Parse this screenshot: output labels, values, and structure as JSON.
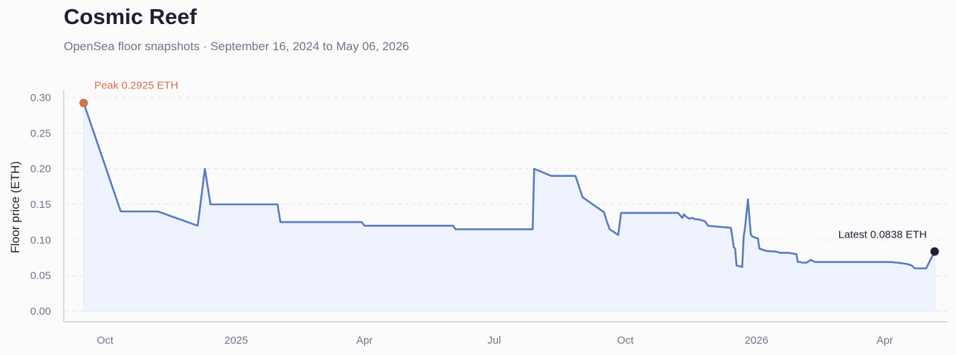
{
  "chart_data": {
    "type": "area",
    "title": "Cosmic Reef",
    "subtitle": "OpenSea floor snapshots · September 16, 2024 to May 06, 2026",
    "xlabel": "",
    "ylabel": "Floor price (ETH)",
    "ylim": [
      -0.015,
      0.31
    ],
    "yticks": [
      0.0,
      0.05,
      0.1,
      0.15,
      0.2,
      0.25,
      0.3
    ],
    "ytick_labels": [
      "0.00",
      "0.05",
      "0.10",
      "0.15",
      "0.20",
      "0.25",
      "0.30"
    ],
    "xlim": [
      "2024-09-02",
      "2026-05-15"
    ],
    "xticks": [
      {
        "date": "2024-10-01",
        "label": "Oct"
      },
      {
        "date": "2025-01-01",
        "label": "2025"
      },
      {
        "date": "2025-04-01",
        "label": "Apr"
      },
      {
        "date": "2025-07-01",
        "label": "Jul"
      },
      {
        "date": "2025-10-01",
        "label": "Oct"
      },
      {
        "date": "2026-01-01",
        "label": "2026"
      },
      {
        "date": "2026-04-01",
        "label": "Apr"
      }
    ],
    "grid": "horizontal dashed",
    "colors": {
      "line": "#5479c4",
      "fill": "#eef3fd",
      "peak": "#d0714b",
      "latest": "#1c2030",
      "grid": "#e3e5ea",
      "axis": "#d5d7e3"
    },
    "series": [
      {
        "x": [
          "2024-09-16",
          "2024-10-12",
          "2024-11-07",
          "2024-12-05",
          "2024-12-10",
          "2024-12-14",
          "2025-01-30",
          "2025-02-01",
          "2025-03-30",
          "2025-04-01",
          "2025-06-02",
          "2025-06-04",
          "2025-07-28",
          "2025-07-29",
          "2025-08-10",
          "2025-08-27",
          "2025-09-01",
          "2025-09-16",
          "2025-09-18",
          "2025-09-20",
          "2025-09-26",
          "2025-09-28",
          "2025-10-02",
          "2025-11-07",
          "2025-11-10",
          "2025-11-11",
          "2025-11-13",
          "2025-11-15",
          "2025-11-17",
          "2025-11-19",
          "2025-11-21",
          "2025-11-23",
          "2025-11-26",
          "2025-11-28",
          "2025-12-14",
          "2025-12-15",
          "2025-12-16",
          "2025-12-17",
          "2025-12-18",
          "2025-12-22",
          "2025-12-23",
          "2025-12-24",
          "2025-12-26",
          "2025-12-28",
          "2025-12-29",
          "2026-01-02",
          "2026-01-03",
          "2026-01-07",
          "2026-01-11",
          "2026-01-13",
          "2026-01-16",
          "2026-01-17",
          "2026-01-23",
          "2026-01-26",
          "2026-01-29",
          "2026-01-30",
          "2026-02-01",
          "2026-02-02",
          "2026-02-05",
          "2026-02-08",
          "2026-02-11",
          "2026-02-15",
          "2026-04-05",
          "2026-04-10",
          "2026-04-14",
          "2026-04-17",
          "2026-04-20",
          "2026-04-22",
          "2026-04-27",
          "2026-04-30",
          "2026-05-06"
        ],
        "values": [
          0.2925,
          0.14,
          0.14,
          0.12,
          0.2,
          0.15,
          0.15,
          0.125,
          0.125,
          0.12,
          0.12,
          0.115,
          0.115,
          0.2,
          0.19,
          0.19,
          0.16,
          0.139,
          0.126,
          0.115,
          0.107,
          0.138,
          0.138,
          0.138,
          0.131,
          0.136,
          0.132,
          0.13,
          0.131,
          0.129,
          0.129,
          0.128,
          0.126,
          0.12,
          0.117,
          0.105,
          0.09,
          0.088,
          0.064,
          0.062,
          0.105,
          0.118,
          0.157,
          0.108,
          0.105,
          0.102,
          0.088,
          0.085,
          0.084,
          0.084,
          0.083,
          0.082,
          0.082,
          0.081,
          0.08,
          0.069,
          0.069,
          0.068,
          0.068,
          0.072,
          0.069,
          0.069,
          0.069,
          0.068,
          0.067,
          0.066,
          0.064,
          0.06,
          0.06,
          0.06,
          0.0838
        ]
      }
    ],
    "annotations": {
      "peak": {
        "date": "2024-09-16",
        "value": 0.2925,
        "label": "Peak 0.2925 ETH"
      },
      "latest": {
        "date": "2026-05-06",
        "value": 0.0838,
        "label": "Latest 0.0838 ETH"
      }
    }
  }
}
